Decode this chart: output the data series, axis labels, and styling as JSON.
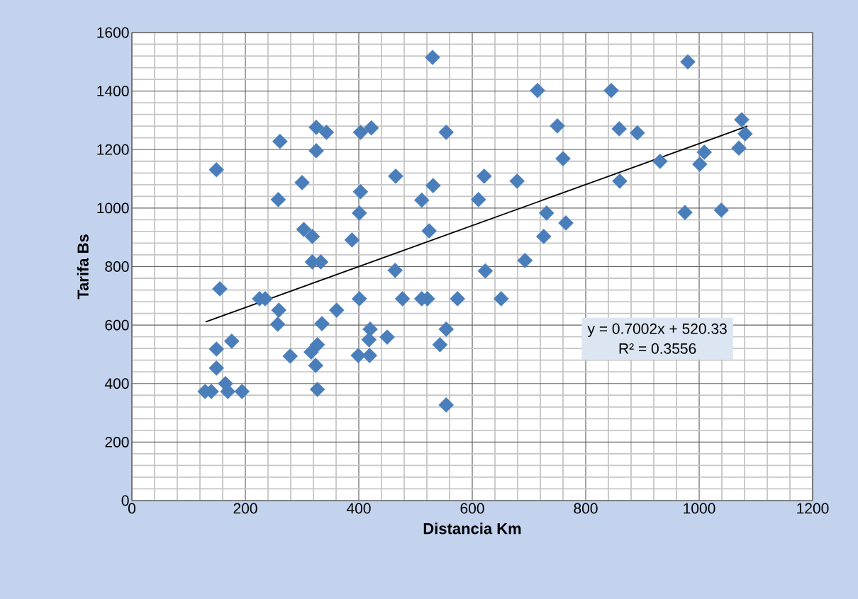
{
  "chart_data": {
    "type": "scatter",
    "xlabel": "Distancia Km",
    "ylabel": "Tarifa Bs",
    "xlim": [
      0,
      1200
    ],
    "xticks": [
      0,
      200,
      400,
      600,
      800,
      1000,
      1200
    ],
    "ylim": [
      0,
      1600
    ],
    "yticks": [
      0,
      200,
      400,
      600,
      800,
      1000,
      1200,
      1400,
      1600
    ],
    "grid": true,
    "marker": "diamond",
    "annotations": [
      "y = 0.7002x + 520.33",
      "R² = 0.3556"
    ],
    "series": [
      {
        "color": "#4a7ebb",
        "x": [
          530,
          980,
          715,
          845,
          1075,
          750,
          325,
          422,
          859,
          403,
          343,
          554,
          891,
          1081,
          261,
          325,
          1009,
          1070,
          760,
          931,
          1001,
          149,
          465,
          621,
          531,
          860,
          679,
          300,
          403,
          511,
          611,
          258,
          975,
          1039,
          401,
          731,
          765,
          303,
          524,
          318,
          726,
          388,
          693,
          318,
          333,
          464,
          623,
          155,
          225,
          235,
          401,
          477,
          511,
          521,
          574,
          651,
          259,
          361,
          257,
          335,
          554,
          420,
          176,
          450,
          418,
          149,
          327,
          543,
          279,
          399,
          419,
          316,
          324,
          149,
          165,
          169,
          129,
          140,
          194,
          327,
          554
        ],
        "values": [
          1515,
          1500,
          1402,
          1402,
          1302,
          1281,
          1276,
          1274,
          1271,
          1259,
          1259,
          1259,
          1257,
          1254,
          1228,
          1196,
          1191,
          1205,
          1169,
          1160,
          1150,
          1131,
          1109,
          1109,
          1077,
          1092,
          1092,
          1087,
          1056,
          1027,
          1029,
          1029,
          985,
          993,
          983,
          983,
          949,
          927,
          922,
          903,
          903,
          891,
          821,
          816,
          816,
          787,
          785,
          724,
          690,
          690,
          690,
          690,
          690,
          690,
          690,
          690,
          651,
          651,
          603,
          605,
          586,
          586,
          545,
          559,
          550,
          518,
          533,
          533,
          494,
          496,
          496,
          508,
          462,
          453,
          400,
          373,
          373,
          373,
          373,
          380,
          327
        ]
      },
      {
        "type": "line",
        "color": "#000000",
        "marker": "none",
        "x": [
          130,
          1085
        ],
        "values": [
          611,
          1280
        ]
      }
    ]
  }
}
